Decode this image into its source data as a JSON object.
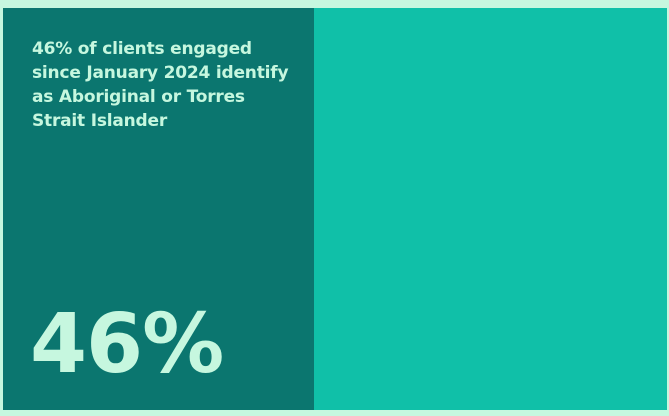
{
  "stat_card": {
    "caption": "46% of clients engaged since January 2024 identify as Aboriginal or Torres Strait Islander",
    "value": "46%",
    "proportion": 0.46
  },
  "colors": {
    "page_background": "#c6f7df",
    "highlight_panel": "#0b766f",
    "remainder_panel": "#10c0a8",
    "text": "#c6f7df"
  }
}
